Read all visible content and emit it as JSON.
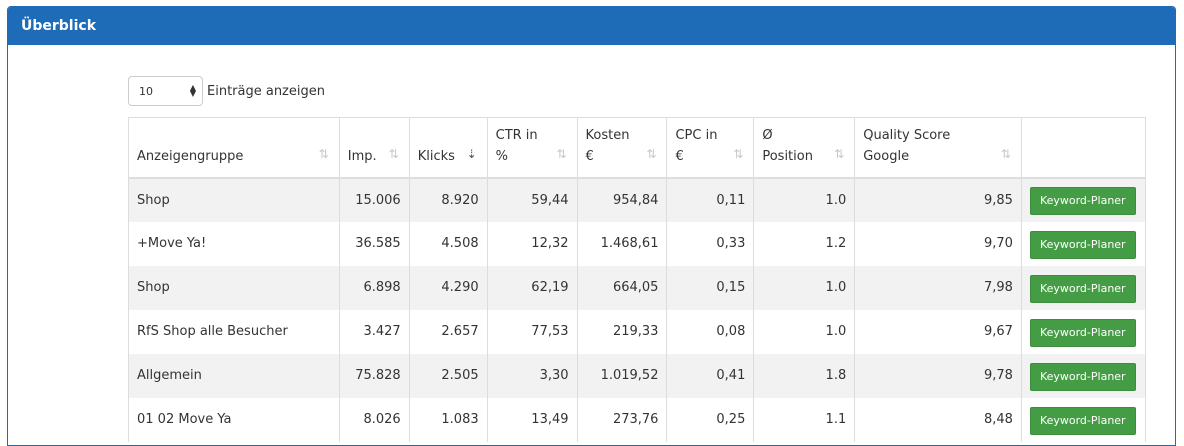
{
  "panel": {
    "title": "Überblick"
  },
  "length": {
    "value": "10",
    "label": "Einträge anzeigen"
  },
  "columns": [
    {
      "label1": "",
      "label2": "Anzeigengruppe"
    },
    {
      "label1": "",
      "label2": "Imp."
    },
    {
      "label1": "",
      "label2": "Klicks"
    },
    {
      "label1": "CTR in",
      "label2": "%"
    },
    {
      "label1": "Kosten",
      "label2": "€"
    },
    {
      "label1": "CPC in",
      "label2": "€"
    },
    {
      "label1": "Ø",
      "label2": "Position"
    },
    {
      "label1": "Quality Score",
      "label2": "Google"
    }
  ],
  "rows": [
    {
      "group": "Shop",
      "imp": "15.006",
      "clicks": "8.920",
      "ctr": "59,44",
      "cost": "954,84",
      "cpc": "0,11",
      "pos": "1.0",
      "qs": "9,85"
    },
    {
      "group": "+Move Ya!",
      "imp": "36.585",
      "clicks": "4.508",
      "ctr": "12,32",
      "cost": "1.468,61",
      "cpc": "0,33",
      "pos": "1.2",
      "qs": "9,70"
    },
    {
      "group": "Shop",
      "imp": "6.898",
      "clicks": "4.290",
      "ctr": "62,19",
      "cost": "664,05",
      "cpc": "0,15",
      "pos": "1.0",
      "qs": "7,98"
    },
    {
      "group": "RfS Shop alle Besucher",
      "imp": "3.427",
      "clicks": "2.657",
      "ctr": "77,53",
      "cost": "219,33",
      "cpc": "0,08",
      "pos": "1.0",
      "qs": "9,67"
    },
    {
      "group": "Allgemein",
      "imp": "75.828",
      "clicks": "2.505",
      "ctr": "3,30",
      "cost": "1.019,52",
      "cpc": "0,41",
      "pos": "1.8",
      "qs": "9,78"
    },
    {
      "group": "01 02 Move Ya",
      "imp": "8.026",
      "clicks": "1.083",
      "ctr": "13,49",
      "cost": "273,76",
      "cpc": "0,25",
      "pos": "1.1",
      "qs": "8,48"
    }
  ],
  "button_label": "Keyword-Planer",
  "icons": {
    "sort": "⇅",
    "sort_active": "⇣"
  },
  "colors": {
    "header_blue": "#1e6bb8",
    "button_green": "#449d44"
  }
}
